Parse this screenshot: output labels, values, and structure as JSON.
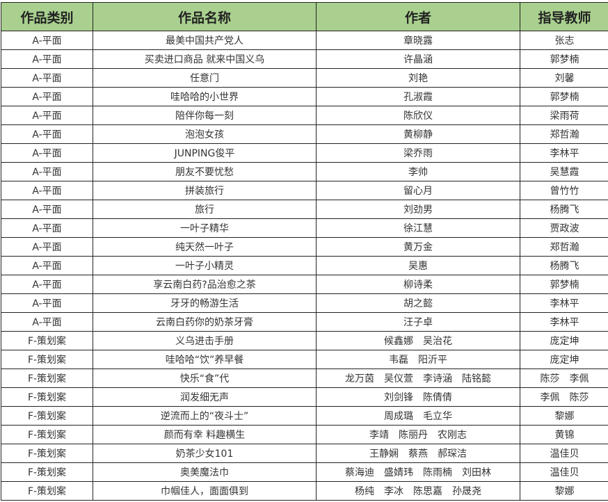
{
  "table": {
    "headers": [
      "作品类别",
      "作品名称",
      "作者",
      "指导教师"
    ],
    "header_color": "#a9d08e",
    "rows": [
      [
        "A-平面",
        "最美中国共产党人",
        "章晓露",
        "张志"
      ],
      [
        "A-平面",
        "买卖进口商品 就来中国义乌",
        "许晶涵",
        "郭梦楠"
      ],
      [
        "A-平面",
        "任意门",
        "刘艳",
        "刘馨"
      ],
      [
        "A-平面",
        "哇哈哈的小世界",
        "孔淑霞",
        "郭梦楠"
      ],
      [
        "A-平面",
        "陪伴你每一刻",
        "陈欣仪",
        "梁雨荷"
      ],
      [
        "A-平面",
        "泡泡女孩",
        "黄柳静",
        "郑哲瀚"
      ],
      [
        "A-平面",
        "JUNPING俊平",
        "梁乔雨",
        "李林平"
      ],
      [
        "A-平面",
        "朋友不要忧愁",
        "李帅",
        "吴慧霞"
      ],
      [
        "A-平面",
        "拼装旅行",
        "留心月",
        "曾竹竹"
      ],
      [
        "A-平面",
        "旅行",
        "刘劲男",
        "杨腾飞"
      ],
      [
        "A-平面",
        "一叶子精华",
        "徐江慧",
        "贾政波"
      ],
      [
        "A-平面",
        "纯天然一叶子",
        "黄万金",
        "郑哲瀚"
      ],
      [
        "A-平面",
        "一叶子小精灵",
        "吴惠",
        "杨腾飞"
      ],
      [
        "A-平面",
        "享云南白药?品治愈之茶",
        "柳诗柔",
        "郭梦楠"
      ],
      [
        "A-平面",
        "牙牙的畅游生活",
        "胡之懿",
        "李林平"
      ],
      [
        "A-平面",
        "云南白药你的奶茶牙膏",
        "汪子卓",
        "李林平"
      ],
      [
        "F-策划案",
        "义乌进击手册",
        "候鑫娜　吴治花",
        "庞定坤"
      ],
      [
        "F-策划案",
        "哇哈哈“饮”养早餐",
        "韦磊　阳沂平",
        "庞定坤"
      ],
      [
        "F-策划案",
        "快乐“食”代",
        "龙万茵　吴仪萱　李诗涵　陆铭懿",
        "陈莎　李佩"
      ],
      [
        "F-策划案",
        "润发细无声",
        "刘剑锋　陈倩倩",
        "李佩　陈莎"
      ],
      [
        "F-策划案",
        "逆流而上的“夜斗士”",
        "周成璐　毛立华",
        "黎娜"
      ],
      [
        "F-策划案",
        "颜而有幸 料趣横生",
        "李靖　陈丽丹　农刚志",
        "黄锦"
      ],
      [
        "F-策划案",
        "奶茶少女101",
        "王静娴　蔡燕　郝琛洁",
        "温佳贝"
      ],
      [
        "F-策划案",
        "奥美魔法巾",
        "蔡海迪　盛婧玮　陈雨楠　刘田林",
        "温佳贝"
      ],
      [
        "F-策划案",
        "巾帼佳人，面面俱到",
        "杨纯　李冰　陈思嘉　孙晟尧",
        "黎娜"
      ]
    ]
  }
}
